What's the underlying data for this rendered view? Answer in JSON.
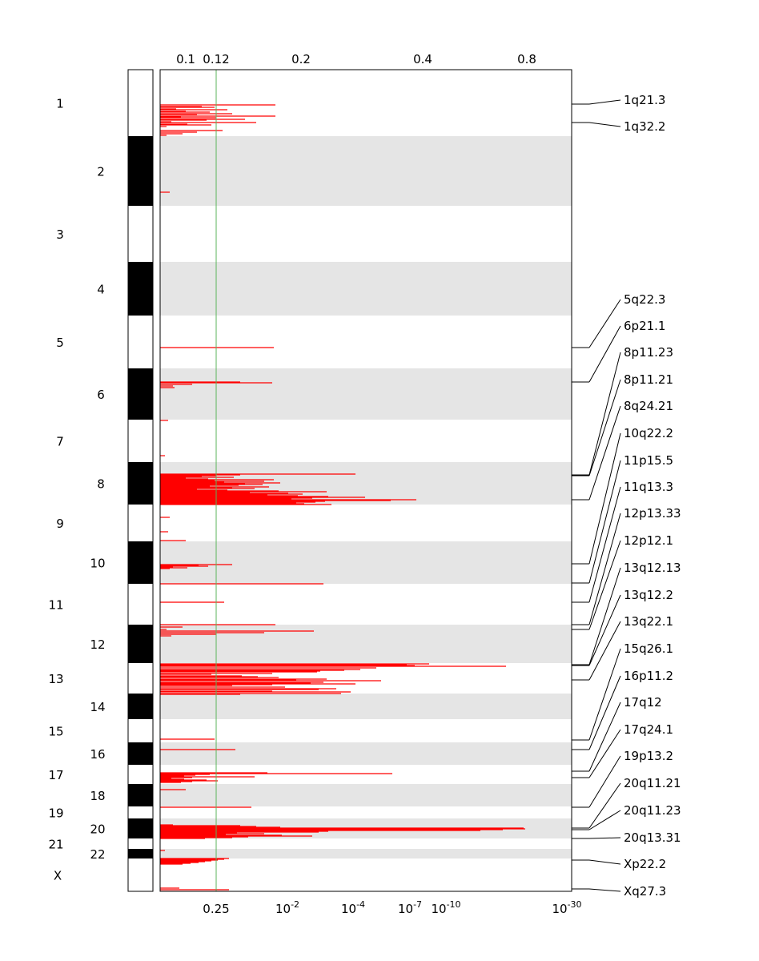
{
  "chart_data": {
    "type": "genome-copy-number-plot",
    "top_axis": {
      "ticks": [
        "0.1",
        "0.12",
        "0.2",
        "0.4",
        "0.8"
      ],
      "values": [
        0.1,
        0.12,
        0.2,
        0.4,
        0.8
      ]
    },
    "bottom_axis": {
      "ticks": [
        {
          "base": "0.25",
          "exp": ""
        },
        {
          "base": "10",
          "exp": "-2"
        },
        {
          "base": "10",
          "exp": "-4"
        },
        {
          "base": "10",
          "exp": "-7"
        },
        {
          "base": "10",
          "exp": "-10"
        },
        {
          "base": "10",
          "exp": "-30"
        }
      ]
    },
    "threshold": {
      "value": 0.25,
      "color": "#5bb55b"
    },
    "chromosomes": [
      "1",
      "2",
      "3",
      "4",
      "5",
      "6",
      "7",
      "8",
      "9",
      "10",
      "11",
      "12",
      "13",
      "14",
      "15",
      "16",
      "17",
      "18",
      "19",
      "20",
      "21",
      "22",
      "X"
    ],
    "cytobands": [
      "1q21.3",
      "1q32.2",
      "5q22.3",
      "6p21.1",
      "8p11.23",
      "8p11.21",
      "8q24.21",
      "10q22.2",
      "11p15.5",
      "11q13.3",
      "12p13.33",
      "12p12.1",
      "13q12.13",
      "13q12.2",
      "13q22.1",
      "15q26.1",
      "16p11.2",
      "17q12",
      "17q24.1",
      "19p13.2",
      "20q11.21",
      "20q11.23",
      "20q13.31",
      "Xp22.2",
      "Xq27.3"
    ],
    "colors": {
      "segment": "#ff0000",
      "band_shade": "#e5e5e5"
    }
  }
}
